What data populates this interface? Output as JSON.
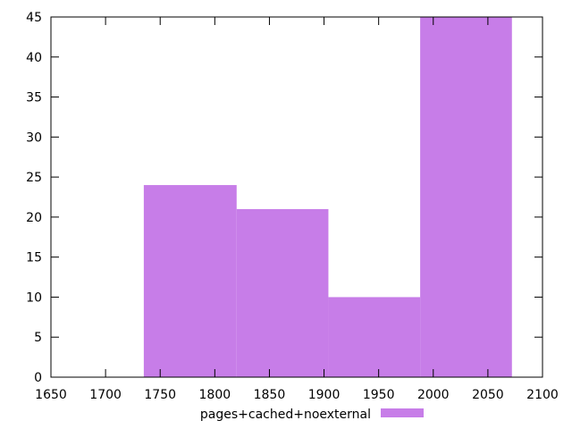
{
  "chart_data": {
    "type": "bar",
    "title": "",
    "xlabel": "",
    "ylabel": "",
    "xlim": [
      1650,
      2100
    ],
    "ylim": [
      0,
      45
    ],
    "x_ticks": [
      1650,
      1700,
      1750,
      1800,
      1850,
      1900,
      1950,
      2000,
      2050,
      2100
    ],
    "y_ticks": [
      0,
      5,
      10,
      15,
      20,
      25,
      30,
      35,
      40,
      45
    ],
    "grid": false,
    "legend_position": "bottom-center",
    "series": [
      {
        "name": "pages+cached+noexternal",
        "color": "#c77de8",
        "bins": [
          {
            "x_start": 1735,
            "x_end": 1820,
            "value": 24
          },
          {
            "x_start": 1820,
            "x_end": 1904,
            "value": 21
          },
          {
            "x_start": 1904,
            "x_end": 1988,
            "value": 10
          },
          {
            "x_start": 1988,
            "x_end": 2072,
            "value": 45
          }
        ]
      }
    ]
  }
}
